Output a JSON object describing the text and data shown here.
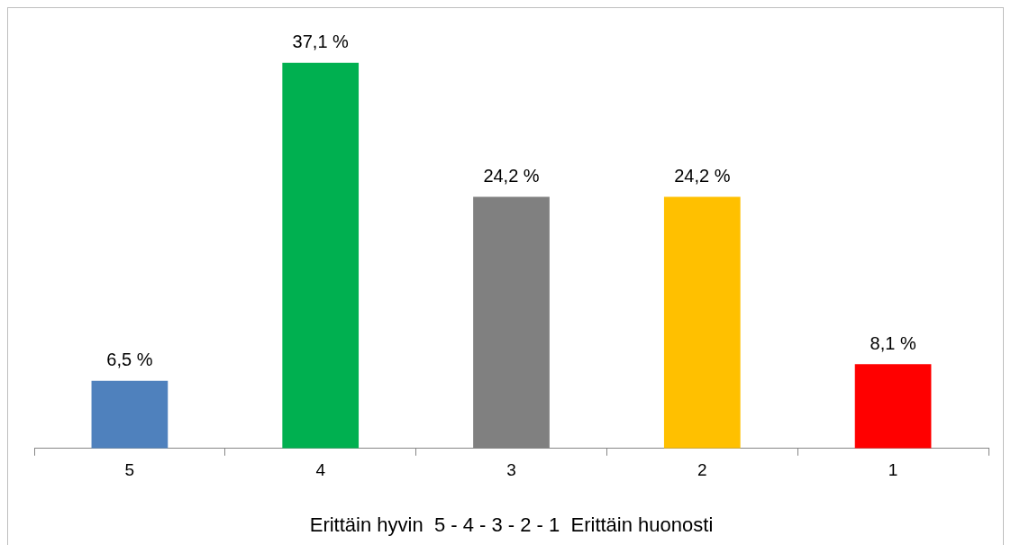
{
  "chart_data": {
    "type": "bar",
    "xlabel": "Erittäin hyvin  5 - 4 - 3 - 2 - 1  Erittäin huonosti",
    "categories": [
      "5",
      "4",
      "3",
      "2",
      "1"
    ],
    "values": [
      6.5,
      37.1,
      24.2,
      24.2,
      8.1
    ],
    "colors": [
      "#4f81bd",
      "#00b050",
      "#808080",
      "#ffc000",
      "#ff0000"
    ],
    "value_labels": [
      "6,5 %",
      "37,1 %",
      "24,2 %",
      "24,2 %",
      "8,1 %"
    ],
    "grid": false,
    "legend": false,
    "tick_labels": "x"
  }
}
